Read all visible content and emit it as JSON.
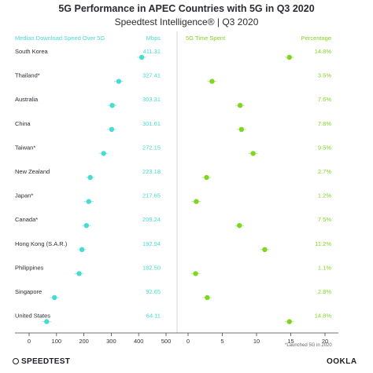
{
  "title": "5G Performance in APEC Countries with 5G in Q3 2020",
  "subtitle": "Speedtest Intelligence® | Q3 2020",
  "footnote": "*Launched 5G in 2020",
  "brand_left": "SPEEDTEST",
  "brand_right": "OOKLA",
  "colors": {
    "download": "#48dcd0",
    "time_spent": "#7fd621",
    "text": "#2b2b33",
    "divider": "#cccccc"
  },
  "chart_data": [
    {
      "type": "scatter",
      "label": "Median Download Speed Over 5G",
      "unit_label": "Mbps",
      "xlim": [
        0,
        500
      ],
      "xticks": [
        0,
        100,
        200,
        300,
        400,
        500
      ],
      "categories": [
        "South Korea",
        "Thailand*",
        "Australia",
        "China",
        "Taiwan*",
        "New Zealand",
        "Japan*",
        "Canada*",
        "Hong Kong (S.A.R.)",
        "Philippines",
        "Singapore",
        "United States"
      ],
      "values": [
        411.31,
        327.41,
        303.31,
        301.61,
        272.15,
        223.18,
        217.65,
        209.24,
        192.94,
        182.5,
        92.65,
        64.11
      ],
      "value_labels": [
        "411.31",
        "327.41",
        "303.31",
        "301.61",
        "272.15",
        "223.18",
        "217.65",
        "209.24",
        "192.94",
        "182.50",
        "92.65",
        "64.11"
      ]
    },
    {
      "type": "scatter",
      "label": "5G Time Spent",
      "unit_label": "Percentage",
      "xlim": [
        0,
        20
      ],
      "xticks": [
        0,
        5,
        10,
        15,
        20
      ],
      "categories": [
        "South Korea",
        "Thailand*",
        "Australia",
        "China",
        "Taiwan*",
        "New Zealand",
        "Japan*",
        "Canada*",
        "Hong Kong (S.A.R.)",
        "Philippines",
        "Singapore",
        "United States"
      ],
      "values": [
        14.8,
        3.5,
        7.6,
        7.8,
        9.5,
        2.7,
        1.2,
        7.5,
        11.2,
        1.1,
        2.8,
        14.8
      ],
      "value_labels": [
        "14.8%",
        "3.5%",
        "7.6%",
        "7.8%",
        "9.5%",
        "2.7%",
        "1.2%",
        "7.5%",
        "11.2%",
        "1.1%",
        "2.8%",
        "14.8%"
      ]
    }
  ]
}
